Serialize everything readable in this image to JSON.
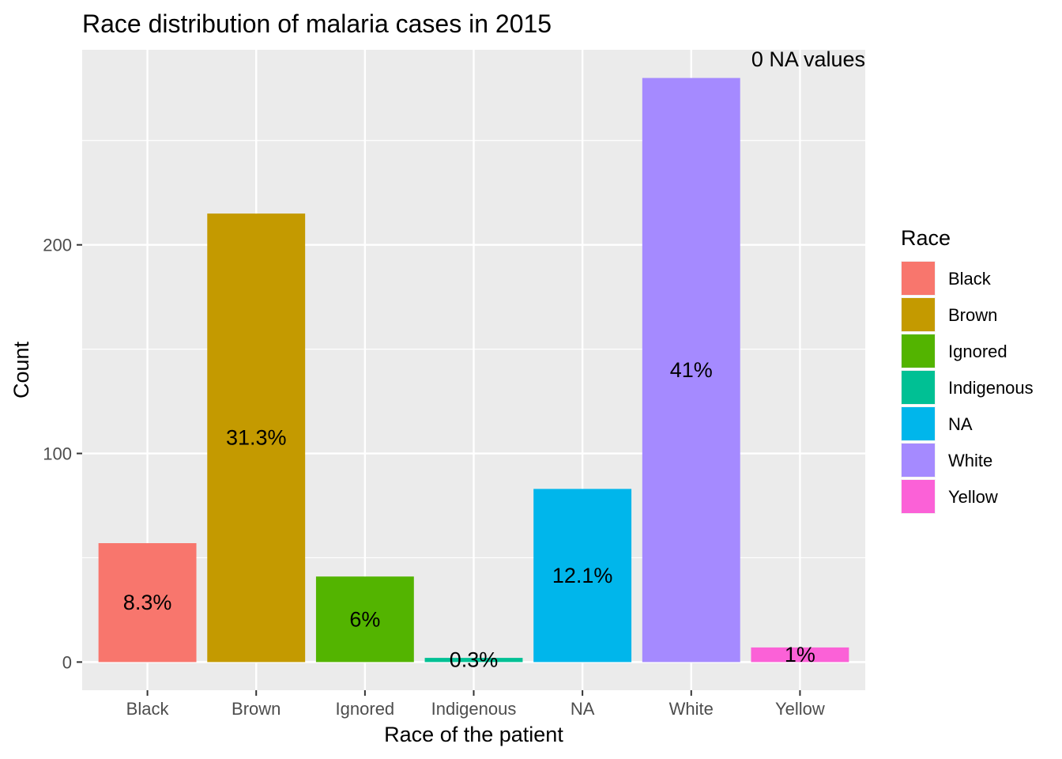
{
  "chart_data": {
    "type": "bar",
    "title": "Race distribution of malaria cases in 2015",
    "xlabel": "Race of the patient",
    "ylabel": "Count",
    "categories": [
      "Black",
      "Brown",
      "Ignored",
      "Indigenous",
      "NA",
      "White",
      "Yellow"
    ],
    "values": [
      57,
      215,
      41,
      2,
      83,
      280,
      7
    ],
    "labels": [
      "8.3%",
      "31.3%",
      "6%",
      "0.3%",
      "12.1%",
      "41%",
      "1%"
    ],
    "colors": [
      "#F8766D",
      "#C49A00",
      "#53B400",
      "#00C094",
      "#00B6EB",
      "#A58AFF",
      "#FB61D7"
    ],
    "ylim": [
      -13.5,
      293.5
    ],
    "yticks": [
      0,
      100,
      200
    ],
    "grid": true,
    "annotation": "0 NA values",
    "legend": {
      "title": "Race",
      "position": "right",
      "items": [
        "Black",
        "Brown",
        "Ignored",
        "Indigenous",
        "NA",
        "White",
        "Yellow"
      ]
    }
  }
}
